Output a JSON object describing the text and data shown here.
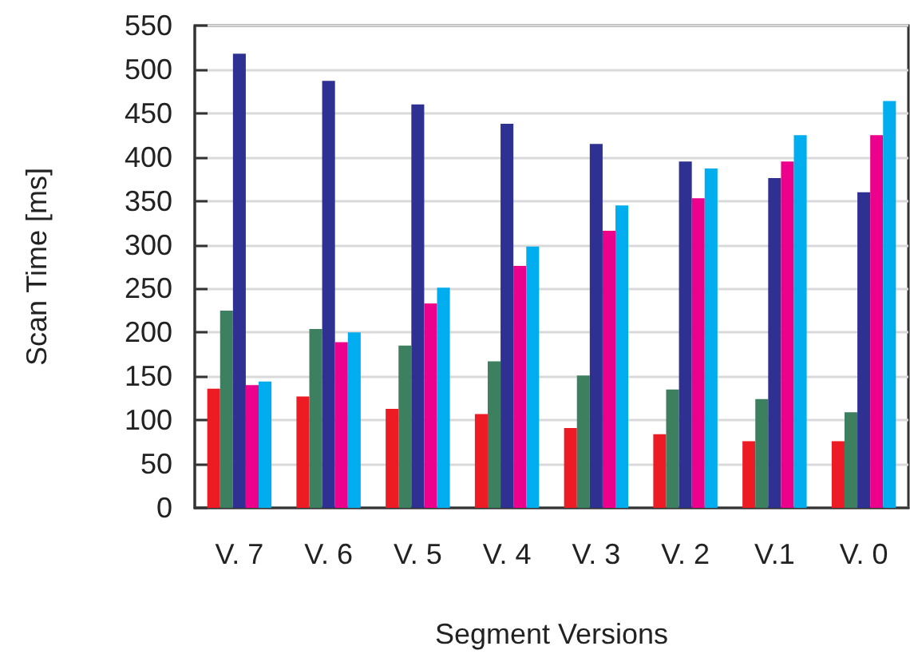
{
  "chart_data": {
    "type": "bar",
    "xlabel": "Segment Versions",
    "ylabel": "Scan Time [ms]",
    "categories": [
      "V. 7",
      "V. 6",
      "V. 5",
      "V. 4",
      "V. 3",
      "V. 2",
      "V.1",
      "V. 0"
    ],
    "series": [
      {
        "color": "#ed1c24",
        "values": [
          136,
          127,
          113,
          107,
          91,
          84,
          76,
          76
        ]
      },
      {
        "color": "#3d8060",
        "values": [
          225,
          204,
          185,
          167,
          151,
          135,
          124,
          109
        ]
      },
      {
        "color": "#2e3192",
        "values": [
          518,
          487,
          460,
          438,
          415,
          395,
          376,
          360
        ]
      },
      {
        "color": "#ec008c",
        "values": [
          140,
          189,
          233,
          276,
          316,
          353,
          395,
          425
        ]
      },
      {
        "color": "#00aeef",
        "values": [
          144,
          200,
          251,
          298,
          345,
          387,
          425,
          464
        ]
      }
    ],
    "ylim": [
      0,
      550
    ],
    "yticks": [
      0,
      50,
      100,
      150,
      200,
      250,
      300,
      350,
      400,
      450,
      500,
      550
    ],
    "grid": "y"
  }
}
